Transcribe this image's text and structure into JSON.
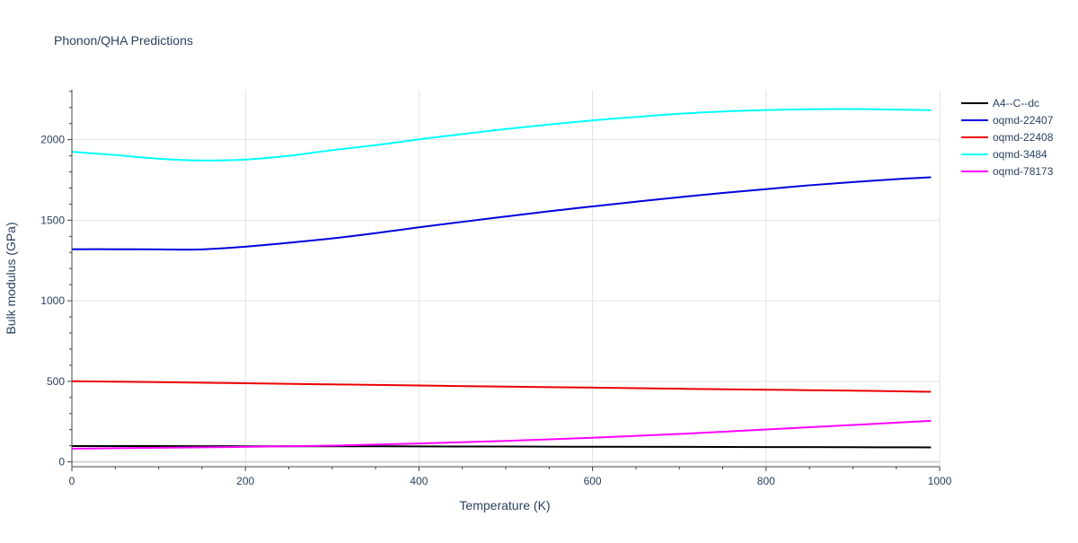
{
  "chart_data": {
    "type": "line",
    "title": "Phonon/QHA Predictions",
    "xlabel": "Temperature (K)",
    "ylabel": "Bulk modulus (GPa)",
    "xlim": [
      0,
      1000
    ],
    "ylim": [
      -30,
      2310
    ],
    "xticks": [
      0,
      200,
      400,
      600,
      800,
      1000
    ],
    "yticks": [
      0,
      500,
      1000,
      1500,
      2000
    ],
    "grid": true,
    "legend_position": "top-right",
    "series": [
      {
        "name": "A4--C--dc",
        "color": "#000000",
        "x": [
          0,
          100,
          200,
          300,
          400,
          500,
          600,
          700,
          800,
          900,
          990
        ],
        "y": [
          98,
          98,
          97,
          97,
          96,
          95,
          94,
          93,
          92,
          91,
          90
        ]
      },
      {
        "name": "oqmd-22407",
        "color": "#0000dd",
        "x": [
          0,
          50,
          100,
          150,
          200,
          250,
          300,
          350,
          400,
          450,
          500,
          550,
          600,
          650,
          700,
          750,
          800,
          850,
          900,
          950,
          990
        ],
        "y": [
          1320,
          1320,
          1319,
          1319,
          1336,
          1360,
          1387,
          1420,
          1456,
          1490,
          1523,
          1556,
          1586,
          1615,
          1643,
          1669,
          1693,
          1717,
          1737,
          1755,
          1767
        ]
      },
      {
        "name": "oqmd-22408",
        "color": "#ee0000",
        "x": [
          0,
          100,
          200,
          300,
          400,
          500,
          600,
          700,
          800,
          900,
          990
        ],
        "y": [
          501,
          495,
          488,
          481,
          474,
          467,
          461,
          454,
          448,
          442,
          435
        ]
      },
      {
        "name": "oqmd-3484",
        "color": "#00ffff",
        "x": [
          0,
          50,
          100,
          150,
          200,
          250,
          300,
          350,
          400,
          450,
          500,
          550,
          600,
          650,
          700,
          750,
          800,
          850,
          900,
          950,
          990
        ],
        "y": [
          1925,
          1905,
          1882,
          1871,
          1877,
          1900,
          1935,
          1966,
          2002,
          2035,
          2066,
          2094,
          2120,
          2141,
          2161,
          2175,
          2184,
          2189,
          2190,
          2187,
          2183
        ]
      },
      {
        "name": "oqmd-78173",
        "color": "#ff00ff",
        "x": [
          0,
          100,
          200,
          300,
          400,
          500,
          600,
          700,
          800,
          900,
          990
        ],
        "y": [
          82,
          88,
          93,
          101,
          114,
          130,
          150,
          173,
          201,
          229,
          255
        ]
      }
    ]
  }
}
